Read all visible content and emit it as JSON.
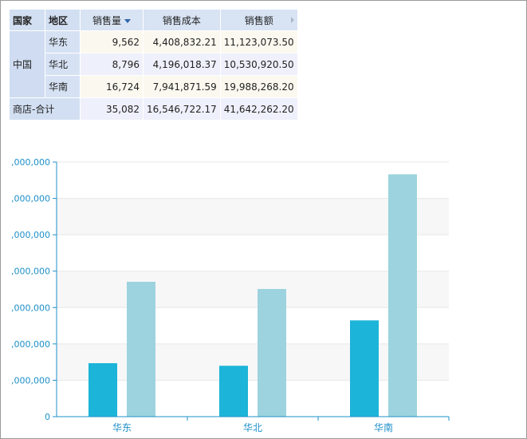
{
  "table": {
    "headers": {
      "country": "国家",
      "region": "地区",
      "sales_qty": "销售量",
      "sales_cost": "销售成本",
      "sales_amount": "销售额"
    },
    "country": "中国",
    "rows": [
      {
        "region": "华东",
        "qty": "9,562",
        "cost": "4,408,832.21",
        "amount": "11,123,073.50"
      },
      {
        "region": "华北",
        "qty": "8,796",
        "cost": "4,196,018.37",
        "amount": "10,530,920.50"
      },
      {
        "region": "华南",
        "qty": "16,724",
        "cost": "7,941,871.59",
        "amount": "19,988,268.20"
      }
    ],
    "total": {
      "label": "商店-合计",
      "qty": "35,082",
      "cost": "16,546,722.17",
      "amount": "41,642,262.20"
    }
  },
  "colors": {
    "cost_bar": "#1cb4d8",
    "amount_bar": "#9dd3de",
    "axis": "#1e90c8",
    "axis_text": "#1e90c8"
  },
  "chart_data": {
    "type": "bar",
    "categories": [
      "华东",
      "华北",
      "华南"
    ],
    "series": [
      {
        "values": [
          4408832.21,
          4196018.37,
          7941871.59
        ]
      },
      {
        "values": [
          11123073.5,
          10530920.5,
          19988268.2
        ]
      }
    ],
    "ylim": [
      0,
      21000000
    ],
    "yticks": [
      0,
      3000000,
      6000000,
      9000000,
      12000000,
      15000000,
      18000000,
      21000000
    ],
    "ytick_labels": [
      "0",
      ",000,000",
      ",000,000",
      ",000,000",
      ",000,000",
      ",000,000",
      ",000,000",
      ",000,000"
    ],
    "grid": true
  }
}
